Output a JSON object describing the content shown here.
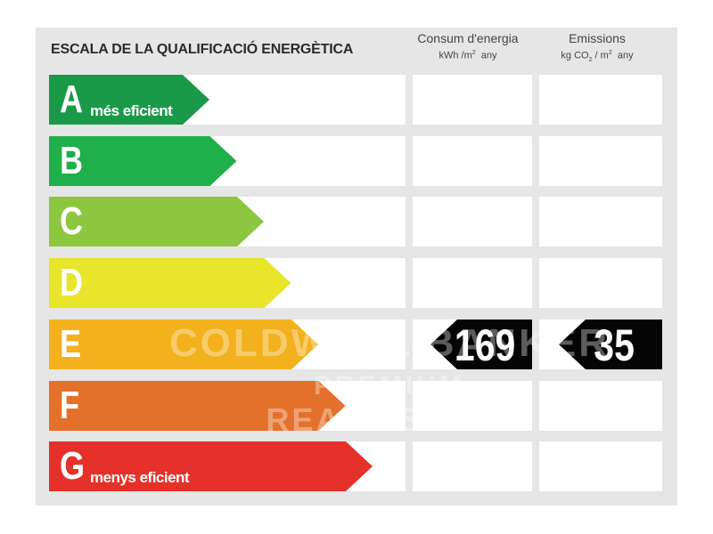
{
  "title": "ESCALA DE LA QUALIFICACIÓ ENERGÈTICA",
  "columns": {
    "consum": {
      "line1": "Consum d'energia",
      "unit_a": "kWh /m",
      "unit_sup": "2",
      "unit_b": "any"
    },
    "emissions": {
      "line1": "Emissions",
      "unit_a": "kg CO",
      "unit_sub": "2",
      "unit_c": "/ m",
      "unit_sup": "2",
      "unit_b": "any"
    }
  },
  "chart_data": {
    "type": "bar",
    "title": "ESCALA DE LA QUALIFICACIÓ ENERGÈTICA",
    "categories": [
      "A",
      "B",
      "C",
      "D",
      "E",
      "F",
      "G"
    ],
    "category_notes": {
      "A": "més eficient",
      "G": "menys eficient"
    },
    "colors": [
      "#1a9a48",
      "#1fb04b",
      "#8dc63f",
      "#e8e52a",
      "#f2b11d",
      "#e4712b",
      "#e5312a"
    ],
    "rating": "E",
    "series": [
      {
        "name": "Consum d'energia",
        "unit": "kWh /m2 any",
        "value": 169,
        "category": "E"
      },
      {
        "name": "Emissions",
        "unit": "kg CO2 / m2 any",
        "value": 35,
        "category": "E"
      }
    ]
  },
  "watermark": {
    "line1": "COLDWELL BANKER",
    "line2": "PREMIUM",
    "line3": "REAL ESTATE"
  }
}
